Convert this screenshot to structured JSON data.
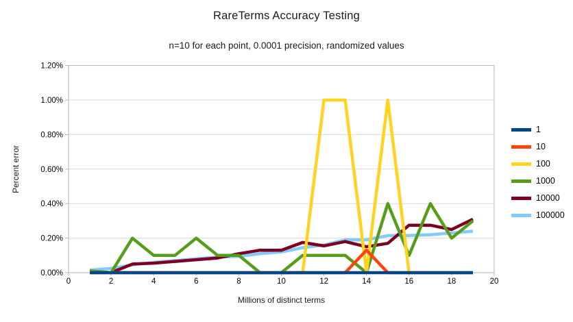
{
  "chart_data": {
    "type": "line",
    "title": "RareTerms Accuracy Testing",
    "subtitle": "n=10 for each point, 0.0001 precision, randomized values",
    "xlabel": "Millions of distinct terms",
    "ylabel": "Percent error",
    "xlim": [
      0,
      20
    ],
    "ylim": [
      0,
      1.2
    ],
    "y_unit": "%",
    "grid": "horizontal",
    "legend_position": "right",
    "x_tick_labels": [
      "0",
      "2",
      "4",
      "6",
      "8",
      "10",
      "12",
      "14",
      "16",
      "18",
      "20"
    ],
    "y_tick_labels": [
      "0.00%",
      "0.20%",
      "0.40%",
      "0.60%",
      "0.80%",
      "1.00%",
      "1.20%"
    ],
    "x": [
      1,
      2,
      3,
      4,
      5,
      6,
      7,
      8,
      9,
      10,
      11,
      12,
      13,
      14,
      15,
      16,
      17,
      18,
      19
    ],
    "series": [
      {
        "name": "1",
        "color": "#004586",
        "values": [
          0,
          0,
          0,
          0,
          0,
          0,
          0,
          0,
          0,
          0,
          0,
          0,
          0,
          0,
          0,
          0,
          0,
          0,
          0
        ]
      },
      {
        "name": "10",
        "color": "#ff420e",
        "values": [
          0,
          0,
          0,
          0,
          0,
          0,
          0,
          0,
          0,
          0,
          0,
          0,
          0,
          0.13,
          0,
          0,
          0,
          0,
          0
        ]
      },
      {
        "name": "100",
        "color": "#ffd320",
        "values": [
          0,
          0,
          0,
          0,
          0,
          0,
          0,
          0,
          0,
          0,
          0,
          1.0,
          1.0,
          0,
          1.0,
          0,
          0,
          0,
          0
        ]
      },
      {
        "name": "1000",
        "color": "#579d1c",
        "values": [
          0.01,
          0,
          0.2,
          0.1,
          0.1,
          0.2,
          0.1,
          0.1,
          0,
          0,
          0.1,
          0.1,
          0.1,
          0,
          0.4,
          0.1,
          0.4,
          0.2,
          0.3
        ]
      },
      {
        "name": "10000",
        "color": "#7e0021",
        "values": [
          0.01,
          0,
          0.05,
          0.055,
          0.065,
          0.075,
          0.085,
          0.11,
          0.13,
          0.13,
          0.175,
          0.155,
          0.18,
          0.15,
          0.17,
          0.275,
          0.275,
          0.25,
          0.31
        ]
      },
      {
        "name": "100000",
        "color": "#83caff",
        "values": [
          0.015,
          0.025,
          0.045,
          0.06,
          0.07,
          0.08,
          0.09,
          0.095,
          0.11,
          0.12,
          0.145,
          0.16,
          0.19,
          0.19,
          0.215,
          0.215,
          0.22,
          0.23,
          0.24
        ]
      }
    ],
    "colors": {
      "gridline": "#d9d9d9",
      "axis": "#b3b3b3",
      "background": "#ffffff",
      "text": "#000000"
    }
  }
}
